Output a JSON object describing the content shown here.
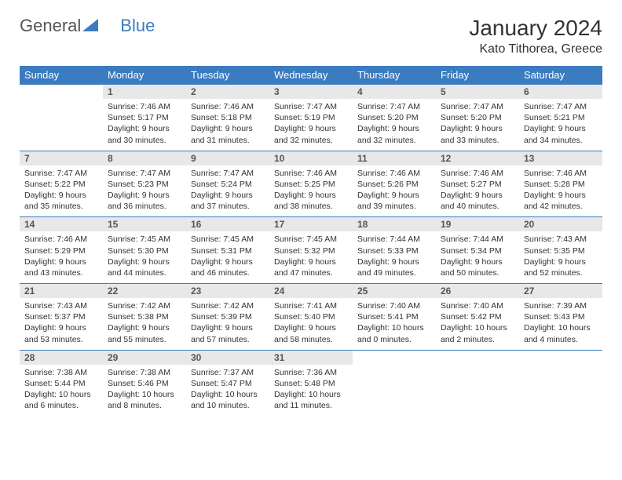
{
  "logo": {
    "text1": "General",
    "text2": "Blue"
  },
  "title": "January 2024",
  "location": "Kato Tithorea, Greece",
  "columns": [
    "Sunday",
    "Monday",
    "Tuesday",
    "Wednesday",
    "Thursday",
    "Friday",
    "Saturday"
  ],
  "colors": {
    "header_bg": "#3b7bbf",
    "header_fg": "#ffffff",
    "daynum_bg": "#e8e8e8",
    "border": "#3b7bbf",
    "text": "#333333"
  },
  "weeks": [
    [
      {
        "n": "",
        "lines": []
      },
      {
        "n": "1",
        "lines": [
          "Sunrise: 7:46 AM",
          "Sunset: 5:17 PM",
          "Daylight: 9 hours",
          "and 30 minutes."
        ]
      },
      {
        "n": "2",
        "lines": [
          "Sunrise: 7:46 AM",
          "Sunset: 5:18 PM",
          "Daylight: 9 hours",
          "and 31 minutes."
        ]
      },
      {
        "n": "3",
        "lines": [
          "Sunrise: 7:47 AM",
          "Sunset: 5:19 PM",
          "Daylight: 9 hours",
          "and 32 minutes."
        ]
      },
      {
        "n": "4",
        "lines": [
          "Sunrise: 7:47 AM",
          "Sunset: 5:20 PM",
          "Daylight: 9 hours",
          "and 32 minutes."
        ]
      },
      {
        "n": "5",
        "lines": [
          "Sunrise: 7:47 AM",
          "Sunset: 5:20 PM",
          "Daylight: 9 hours",
          "and 33 minutes."
        ]
      },
      {
        "n": "6",
        "lines": [
          "Sunrise: 7:47 AM",
          "Sunset: 5:21 PM",
          "Daylight: 9 hours",
          "and 34 minutes."
        ]
      }
    ],
    [
      {
        "n": "7",
        "lines": [
          "Sunrise: 7:47 AM",
          "Sunset: 5:22 PM",
          "Daylight: 9 hours",
          "and 35 minutes."
        ]
      },
      {
        "n": "8",
        "lines": [
          "Sunrise: 7:47 AM",
          "Sunset: 5:23 PM",
          "Daylight: 9 hours",
          "and 36 minutes."
        ]
      },
      {
        "n": "9",
        "lines": [
          "Sunrise: 7:47 AM",
          "Sunset: 5:24 PM",
          "Daylight: 9 hours",
          "and 37 minutes."
        ]
      },
      {
        "n": "10",
        "lines": [
          "Sunrise: 7:46 AM",
          "Sunset: 5:25 PM",
          "Daylight: 9 hours",
          "and 38 minutes."
        ]
      },
      {
        "n": "11",
        "lines": [
          "Sunrise: 7:46 AM",
          "Sunset: 5:26 PM",
          "Daylight: 9 hours",
          "and 39 minutes."
        ]
      },
      {
        "n": "12",
        "lines": [
          "Sunrise: 7:46 AM",
          "Sunset: 5:27 PM",
          "Daylight: 9 hours",
          "and 40 minutes."
        ]
      },
      {
        "n": "13",
        "lines": [
          "Sunrise: 7:46 AM",
          "Sunset: 5:28 PM",
          "Daylight: 9 hours",
          "and 42 minutes."
        ]
      }
    ],
    [
      {
        "n": "14",
        "lines": [
          "Sunrise: 7:46 AM",
          "Sunset: 5:29 PM",
          "Daylight: 9 hours",
          "and 43 minutes."
        ]
      },
      {
        "n": "15",
        "lines": [
          "Sunrise: 7:45 AM",
          "Sunset: 5:30 PM",
          "Daylight: 9 hours",
          "and 44 minutes."
        ]
      },
      {
        "n": "16",
        "lines": [
          "Sunrise: 7:45 AM",
          "Sunset: 5:31 PM",
          "Daylight: 9 hours",
          "and 46 minutes."
        ]
      },
      {
        "n": "17",
        "lines": [
          "Sunrise: 7:45 AM",
          "Sunset: 5:32 PM",
          "Daylight: 9 hours",
          "and 47 minutes."
        ]
      },
      {
        "n": "18",
        "lines": [
          "Sunrise: 7:44 AM",
          "Sunset: 5:33 PM",
          "Daylight: 9 hours",
          "and 49 minutes."
        ]
      },
      {
        "n": "19",
        "lines": [
          "Sunrise: 7:44 AM",
          "Sunset: 5:34 PM",
          "Daylight: 9 hours",
          "and 50 minutes."
        ]
      },
      {
        "n": "20",
        "lines": [
          "Sunrise: 7:43 AM",
          "Sunset: 5:35 PM",
          "Daylight: 9 hours",
          "and 52 minutes."
        ]
      }
    ],
    [
      {
        "n": "21",
        "lines": [
          "Sunrise: 7:43 AM",
          "Sunset: 5:37 PM",
          "Daylight: 9 hours",
          "and 53 minutes."
        ]
      },
      {
        "n": "22",
        "lines": [
          "Sunrise: 7:42 AM",
          "Sunset: 5:38 PM",
          "Daylight: 9 hours",
          "and 55 minutes."
        ]
      },
      {
        "n": "23",
        "lines": [
          "Sunrise: 7:42 AM",
          "Sunset: 5:39 PM",
          "Daylight: 9 hours",
          "and 57 minutes."
        ]
      },
      {
        "n": "24",
        "lines": [
          "Sunrise: 7:41 AM",
          "Sunset: 5:40 PM",
          "Daylight: 9 hours",
          "and 58 minutes."
        ]
      },
      {
        "n": "25",
        "lines": [
          "Sunrise: 7:40 AM",
          "Sunset: 5:41 PM",
          "Daylight: 10 hours",
          "and 0 minutes."
        ]
      },
      {
        "n": "26",
        "lines": [
          "Sunrise: 7:40 AM",
          "Sunset: 5:42 PM",
          "Daylight: 10 hours",
          "and 2 minutes."
        ]
      },
      {
        "n": "27",
        "lines": [
          "Sunrise: 7:39 AM",
          "Sunset: 5:43 PM",
          "Daylight: 10 hours",
          "and 4 minutes."
        ]
      }
    ],
    [
      {
        "n": "28",
        "lines": [
          "Sunrise: 7:38 AM",
          "Sunset: 5:44 PM",
          "Daylight: 10 hours",
          "and 6 minutes."
        ]
      },
      {
        "n": "29",
        "lines": [
          "Sunrise: 7:38 AM",
          "Sunset: 5:46 PM",
          "Daylight: 10 hours",
          "and 8 minutes."
        ]
      },
      {
        "n": "30",
        "lines": [
          "Sunrise: 7:37 AM",
          "Sunset: 5:47 PM",
          "Daylight: 10 hours",
          "and 10 minutes."
        ]
      },
      {
        "n": "31",
        "lines": [
          "Sunrise: 7:36 AM",
          "Sunset: 5:48 PM",
          "Daylight: 10 hours",
          "and 11 minutes."
        ]
      },
      {
        "n": "",
        "lines": []
      },
      {
        "n": "",
        "lines": []
      },
      {
        "n": "",
        "lines": []
      }
    ]
  ]
}
